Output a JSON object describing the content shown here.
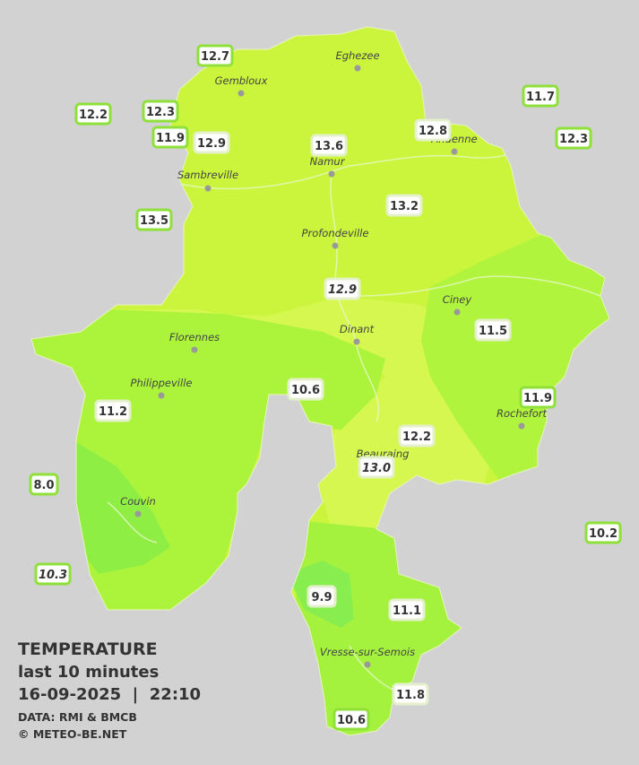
{
  "title": {
    "heading": "TEMPERATURE",
    "subtitle": "last 10 minutes",
    "datetime": "16-09-2025  |  22:10",
    "source": "DATA: RMI & BMCB",
    "copyright": "© METEO-BE.NET"
  },
  "cities": [
    "Eghezee",
    "Gembloux",
    "Andenne",
    "Namur",
    "Sambreville",
    "Profondeville",
    "Ciney",
    "Dinant",
    "Florennes",
    "Philippeville",
    "Rochefort",
    "Beauraing",
    "Couvin",
    "Vresse-sur-Semois"
  ],
  "stations": [
    {
      "label": "12.7"
    },
    {
      "label": "12.2"
    },
    {
      "label": "12.3"
    },
    {
      "label": "11.9"
    },
    {
      "label": "12.9"
    },
    {
      "label": "13.6"
    },
    {
      "label": "12.8"
    },
    {
      "label": "11.7"
    },
    {
      "label": "12.3"
    },
    {
      "label": "13.5"
    },
    {
      "label": "13.2"
    },
    {
      "label": "12.9",
      "italic": true
    },
    {
      "label": "11.5"
    },
    {
      "label": "10.6"
    },
    {
      "label": "11.2"
    },
    {
      "label": "11.9"
    },
    {
      "label": "12.2"
    },
    {
      "label": "13.0",
      "italic": true
    },
    {
      "label": "8.0"
    },
    {
      "label": "10.2"
    },
    {
      "label": "10.3",
      "italic": true
    },
    {
      "label": "9.9"
    },
    {
      "label": "11.1"
    },
    {
      "label": "11.8"
    },
    {
      "label": "10.6"
    }
  ]
}
